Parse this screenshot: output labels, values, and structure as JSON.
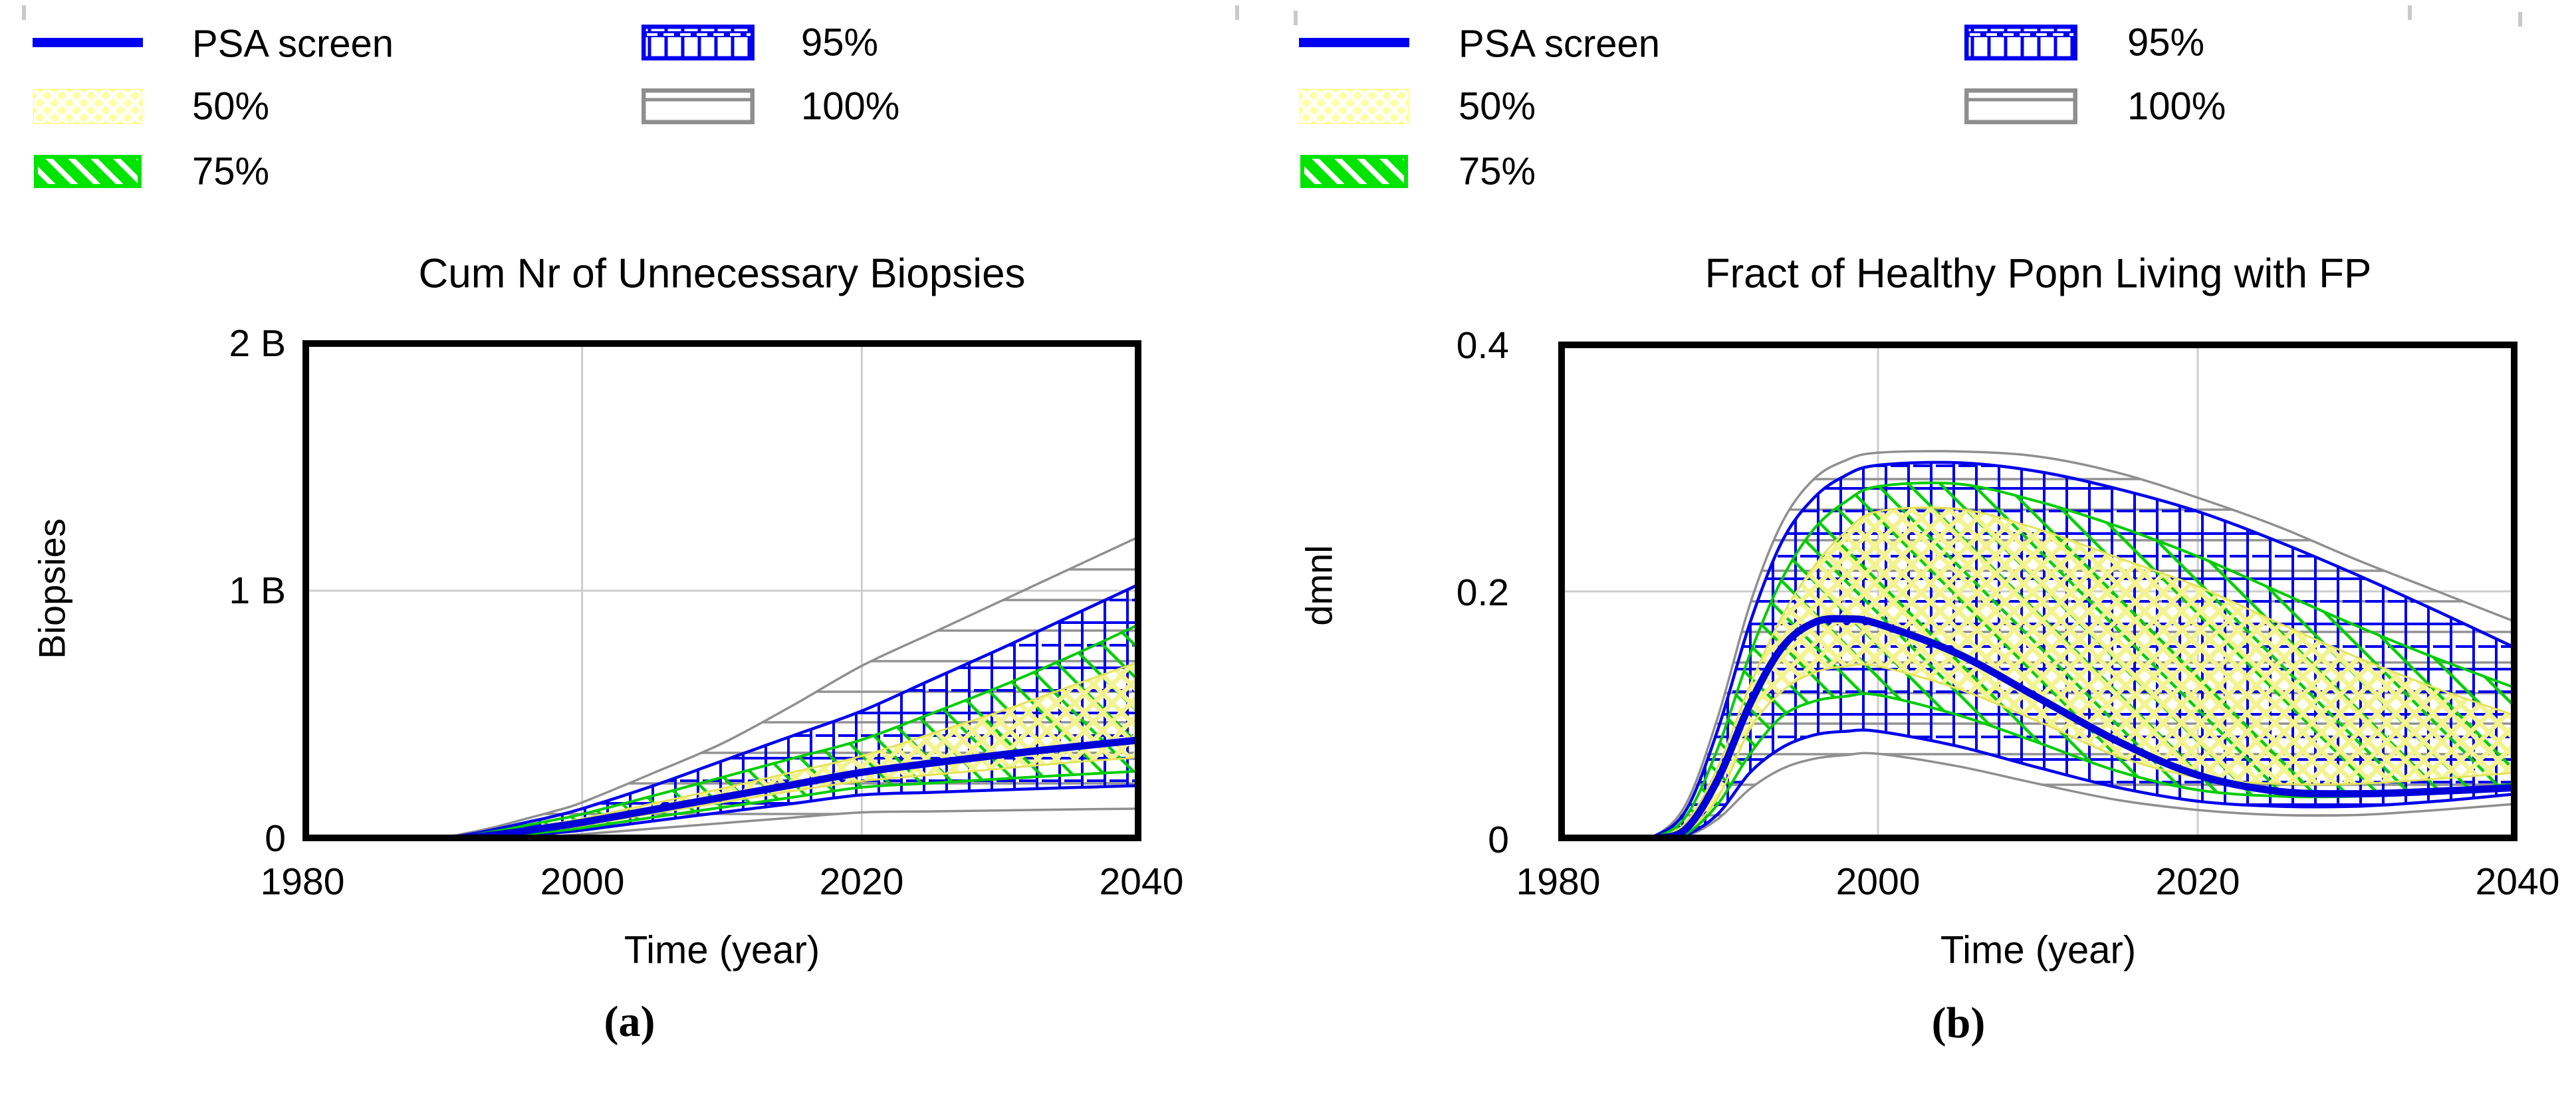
{
  "legend": {
    "items": [
      {
        "label": "PSA screen",
        "swatch": "blue-line",
        "color": "#0000f0"
      },
      {
        "label": "50%",
        "swatch": "yellow-crosshatch",
        "color": "#ffffa8"
      },
      {
        "label": "75%",
        "swatch": "green-diagonal",
        "color": "#00e400"
      },
      {
        "label": "95%",
        "swatch": "blue-grid",
        "color": "#0000f0"
      },
      {
        "label": "100%",
        "swatch": "gray-horizontal",
        "color": "#8f8f8f"
      }
    ]
  },
  "chart_data": [
    {
      "type": "area",
      "title": "Cum Nr of Unnecessary Biopsies",
      "ylabel": "Biopsies",
      "xlabel": "Time (year)",
      "caption": "(a)",
      "xlim": [
        1980,
        2040
      ],
      "ylim": [
        0,
        2
      ],
      "x_tick_labels": [
        "1980",
        "2000",
        "2020",
        "2040"
      ],
      "x_tick_values": [
        1980,
        2000,
        2020,
        2040
      ],
      "y_tick_labels": [
        "2 B",
        "1 B",
        "0"
      ],
      "y_tick_values": [
        2,
        1,
        0
      ],
      "grid_x": [
        2000,
        2020
      ],
      "grid_y": [
        1
      ],
      "x": [
        1980,
        1984,
        1986,
        1988,
        1990,
        1992,
        1994,
        1996,
        1998,
        2000,
        2005,
        2010,
        2015,
        2020,
        2025,
        2030,
        2035,
        2040
      ],
      "series": [
        {
          "name": "100%",
          "role": "band",
          "hatch": "100",
          "color": "#8f8f8f",
          "line_width": 3.5,
          "upper": [
            0,
            0,
            0,
            0.005,
            0.015,
            0.035,
            0.06,
            0.09,
            0.12,
            0.155,
            0.27,
            0.39,
            0.54,
            0.7,
            0.83,
            0.96,
            1.09,
            1.22
          ],
          "lower": [
            0,
            0,
            0,
            0.001,
            0.002,
            0.005,
            0.009,
            0.014,
            0.02,
            0.028,
            0.05,
            0.072,
            0.094,
            0.115,
            0.119,
            0.123,
            0.127,
            0.13
          ]
        },
        {
          "name": "95%",
          "role": "band",
          "hatch": "95",
          "color": "#0000ea",
          "line_width": 4.5,
          "upper": [
            0,
            0,
            0,
            0.004,
            0.012,
            0.028,
            0.05,
            0.075,
            0.1,
            0.13,
            0.22,
            0.32,
            0.42,
            0.52,
            0.645,
            0.77,
            0.9,
            1.03
          ],
          "lower": [
            0,
            0,
            0,
            0.001,
            0.003,
            0.008,
            0.015,
            0.023,
            0.033,
            0.044,
            0.08,
            0.115,
            0.15,
            0.185,
            0.195,
            0.205,
            0.214,
            0.222
          ]
        },
        {
          "name": "75%",
          "role": "band",
          "hatch": "75",
          "color": "#00cc00",
          "line_width": 4,
          "upper": [
            0,
            0,
            0,
            0.003,
            0.01,
            0.024,
            0.042,
            0.063,
            0.085,
            0.108,
            0.18,
            0.255,
            0.33,
            0.405,
            0.51,
            0.62,
            0.74,
            0.87
          ],
          "lower": [
            0,
            0,
            0,
            0.001,
            0.004,
            0.01,
            0.018,
            0.028,
            0.04,
            0.053,
            0.095,
            0.135,
            0.175,
            0.215,
            0.232,
            0.249,
            0.265,
            0.28
          ]
        },
        {
          "name": "50%",
          "role": "band",
          "hatch": "50",
          "color": "#e3e35a",
          "line_width": 3,
          "upper": [
            0,
            0,
            0,
            0.003,
            0.008,
            0.02,
            0.035,
            0.052,
            0.07,
            0.09,
            0.15,
            0.21,
            0.275,
            0.34,
            0.43,
            0.52,
            0.62,
            0.72
          ],
          "lower": [
            0,
            0,
            0,
            0.002,
            0.005,
            0.012,
            0.022,
            0.034,
            0.048,
            0.062,
            0.11,
            0.155,
            0.2,
            0.24,
            0.265,
            0.29,
            0.315,
            0.335
          ]
        },
        {
          "name": "PSA screen",
          "role": "base",
          "color": "#0000d8",
          "line_width": 11,
          "values": [
            0,
            0,
            0,
            0.002,
            0.006,
            0.015,
            0.027,
            0.042,
            0.058,
            0.075,
            0.125,
            0.175,
            0.225,
            0.275,
            0.312,
            0.345,
            0.376,
            0.405
          ]
        }
      ]
    },
    {
      "type": "area",
      "title": "Fract of Healthy Popn Living with FP",
      "ylabel": "dmnl",
      "xlabel": "Time (year)",
      "caption": "(b)",
      "xlim": [
        1980,
        2040
      ],
      "ylim": [
        0,
        0.4
      ],
      "x_tick_labels": [
        "1980",
        "2000",
        "2020",
        "2040"
      ],
      "x_tick_values": [
        1980,
        2000,
        2020,
        2040
      ],
      "y_tick_labels": [
        "0.4",
        "0.2",
        "0"
      ],
      "y_tick_values": [
        0.4,
        0.2,
        0
      ],
      "grid_x": [
        2000,
        2020
      ],
      "grid_y": [
        0.2
      ],
      "x": [
        1980,
        1984,
        1986,
        1988,
        1990,
        1992,
        1994,
        1996,
        1998,
        2000,
        2005,
        2010,
        2015,
        2020,
        2025,
        2030,
        2035,
        2040
      ],
      "series": [
        {
          "name": "100%",
          "role": "band",
          "hatch": "100",
          "color": "#8f8f8f",
          "line_width": 3.5,
          "upper": [
            0,
            0,
            0.004,
            0.03,
            0.1,
            0.19,
            0.255,
            0.29,
            0.305,
            0.311,
            0.312,
            0.308,
            0.295,
            0.275,
            0.252,
            0.225,
            0.2,
            0.175
          ],
          "lower": [
            0,
            0,
            0.001,
            0.004,
            0.018,
            0.042,
            0.058,
            0.066,
            0.069,
            0.07,
            0.06,
            0.046,
            0.033,
            0.025,
            0.021,
            0.021,
            0.025,
            0.03
          ]
        },
        {
          "name": "95%",
          "role": "band",
          "hatch": "95",
          "color": "#0000ea",
          "line_width": 4.5,
          "upper": [
            0,
            0,
            0.004,
            0.025,
            0.09,
            0.175,
            0.24,
            0.275,
            0.293,
            0.301,
            0.303,
            0.296,
            0.282,
            0.264,
            0.24,
            0.213,
            0.184,
            0.154
          ],
          "lower": [
            0,
            0,
            0.001,
            0.005,
            0.022,
            0.055,
            0.075,
            0.085,
            0.088,
            0.088,
            0.076,
            0.059,
            0.043,
            0.032,
            0.028,
            0.028,
            0.032,
            0.038
          ]
        },
        {
          "name": "75%",
          "role": "band",
          "hatch": "75",
          "color": "#00cc00",
          "line_width": 4,
          "upper": [
            0,
            0,
            0.003,
            0.02,
            0.075,
            0.15,
            0.21,
            0.25,
            0.272,
            0.284,
            0.286,
            0.272,
            0.252,
            0.228,
            0.2,
            0.172,
            0.146,
            0.122
          ],
          "lower": [
            0,
            0,
            0.001,
            0.006,
            0.03,
            0.07,
            0.1,
            0.112,
            0.116,
            0.117,
            0.101,
            0.079,
            0.056,
            0.041,
            0.036,
            0.036,
            0.04,
            0.046
          ]
        },
        {
          "name": "50%",
          "role": "band",
          "hatch": "50",
          "color": "#e3e35a",
          "line_width": 3,
          "upper": [
            0,
            0,
            0.003,
            0.015,
            0.06,
            0.125,
            0.18,
            0.22,
            0.248,
            0.264,
            0.266,
            0.25,
            0.227,
            0.204,
            0.175,
            0.147,
            0.122,
            0.1
          ],
          "lower": [
            0,
            0,
            0.002,
            0.008,
            0.035,
            0.09,
            0.12,
            0.135,
            0.14,
            0.14,
            0.122,
            0.096,
            0.068,
            0.051,
            0.046,
            0.046,
            0.05,
            0.055
          ]
        },
        {
          "name": "PSA screen",
          "role": "base",
          "color": "#0000d8",
          "line_width": 11,
          "values": [
            0,
            0,
            0.002,
            0.01,
            0.05,
            0.11,
            0.155,
            0.175,
            0.178,
            0.174,
            0.15,
            0.115,
            0.08,
            0.053,
            0.04,
            0.038,
            0.04,
            0.043
          ]
        }
      ]
    }
  ]
}
